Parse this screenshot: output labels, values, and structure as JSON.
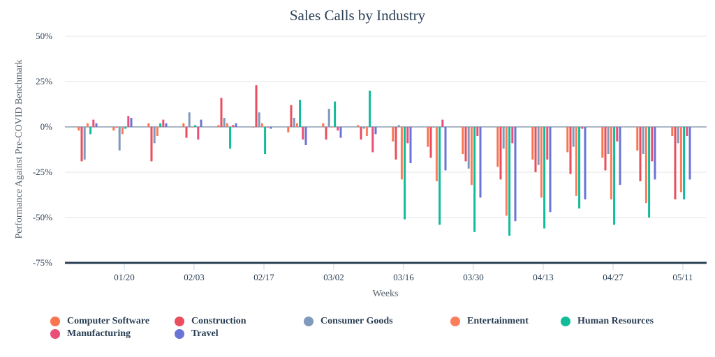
{
  "chart_data": {
    "type": "bar",
    "title": "Sales Calls by Industry",
    "xlabel": "Weeks",
    "ylabel": "Performance Against Pre-COVID Benchmark",
    "ylim": [
      -75,
      50
    ],
    "yticks": [
      50,
      25,
      0,
      -25,
      -50,
      -75
    ],
    "ytick_labels": [
      "50%",
      "25%",
      "0%",
      "-25%",
      "-50%",
      "-75%"
    ],
    "grid": true,
    "legend_position": "bottom",
    "categories": [
      "01/13",
      "01/20",
      "01/27",
      "02/03",
      "02/10",
      "02/17",
      "02/24",
      "03/02",
      "03/09",
      "03/16",
      "03/23",
      "03/30",
      "04/06",
      "04/13",
      "04/20",
      "04/27",
      "05/04",
      "05/11"
    ],
    "xtick_labels": [
      "01/20",
      "02/03",
      "02/17",
      "03/02",
      "03/16",
      "03/30",
      "04/13",
      "04/27",
      "05/11"
    ],
    "series": [
      {
        "name": "Computer Software",
        "color": "#f8754f",
        "values": [
          -2,
          -2,
          2,
          2,
          1,
          0,
          -3,
          2,
          1,
          -8,
          -11,
          -15,
          -22,
          -18,
          -14,
          -17,
          -13,
          -5
        ]
      },
      {
        "name": "Construction",
        "color": "#ea4d5b",
        "values": [
          -19,
          0,
          -19,
          -6,
          16,
          23,
          12,
          -7,
          -7,
          -18,
          -17,
          -19,
          -29,
          -25,
          -26,
          -24,
          -30,
          -40
        ]
      },
      {
        "name": "Consumer Goods",
        "color": "#7f9abb",
        "values": [
          -18,
          -13,
          -9,
          8,
          5,
          8,
          5,
          10,
          -1,
          1,
          0,
          -23,
          -12,
          -21,
          -11,
          -15,
          -15,
          -9
        ]
      },
      {
        "name": "Entertainment",
        "color": "#fb7d5b",
        "values": [
          2,
          -4,
          -5,
          0,
          2,
          2,
          2,
          0,
          -5,
          -29,
          -30,
          -32,
          -49,
          -39,
          -38,
          -40,
          -42,
          -36
        ]
      },
      {
        "name": "Human Resources",
        "color": "#10bc9a",
        "values": [
          -4,
          -1,
          2,
          1,
          -12,
          -15,
          15,
          14,
          20,
          -51,
          -54,
          -58,
          -60,
          -56,
          -45,
          -54,
          -50,
          -40
        ]
      },
      {
        "name": "Manufacturing",
        "color": "#ea4f78",
        "values": [
          4,
          6,
          4,
          -7,
          1,
          0,
          -7,
          -2,
          -14,
          -9,
          4,
          -5,
          -9,
          -18,
          -1,
          -8,
          -19,
          -5
        ]
      },
      {
        "name": "Travel",
        "color": "#6a74d6",
        "values": [
          2,
          5,
          2,
          4,
          2,
          -1,
          -10,
          -6,
          -4,
          -20,
          -24,
          -39,
          -52,
          -47,
          -40,
          -32,
          -29,
          -29
        ]
      }
    ]
  }
}
